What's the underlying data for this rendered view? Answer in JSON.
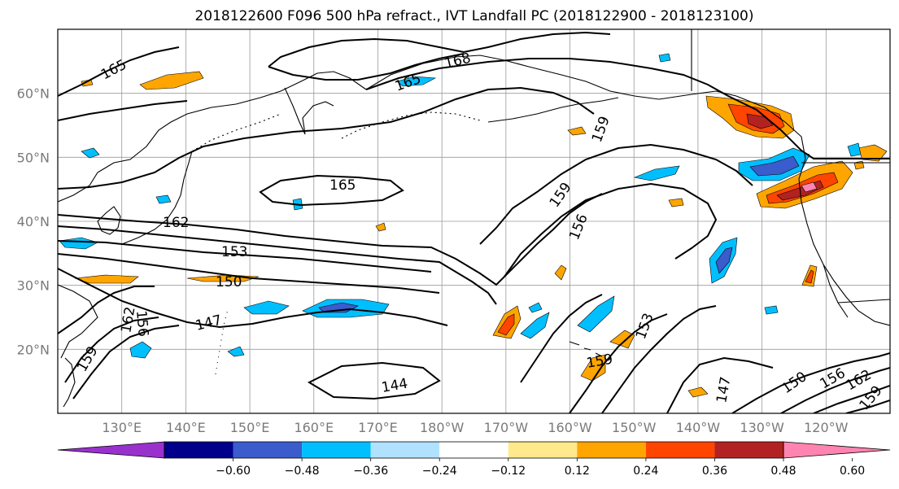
{
  "title": "2018122600 F096 500 hPa refract., IVT Landfall PC (2018122900 - 2018123100)",
  "map": {
    "projection": "PlateCarree",
    "lon_range": [
      120,
      250
    ],
    "lat_range": [
      10,
      70
    ],
    "lat_ticks": [
      "20°N",
      "30°N",
      "40°N",
      "50°N",
      "60°N"
    ],
    "lon_ticks": [
      "130°E",
      "140°E",
      "150°E",
      "160°E",
      "170°E",
      "180°W",
      "170°W",
      "160°W",
      "150°W",
      "140°W",
      "130°W",
      "120°W"
    ],
    "gridlines": true,
    "coastline_color": "#000000",
    "contour_color": "#000000",
    "contour_labels": [
      "165",
      "168",
      "165",
      "159",
      "165",
      "162",
      "153",
      "150",
      "147",
      "144",
      "156",
      "159",
      "162",
      "159",
      "156",
      "153",
      "159",
      "147",
      "150",
      "156",
      "162",
      "159"
    ]
  },
  "colorbar": {
    "tick_labels": [
      "−0.60",
      "−0.48",
      "−0.36",
      "−0.24",
      "−0.12",
      "0.12",
      "0.24",
      "0.36",
      "0.48",
      "0.60"
    ],
    "colors": [
      "#9932cc",
      "#00008b",
      "#3a5ccc",
      "#00bfff",
      "#b0e2ff",
      "#ffffff",
      "#ffe98a",
      "#ffa500",
      "#ff4500",
      "#b22222",
      "#ff85b0"
    ],
    "extend": "both"
  }
}
